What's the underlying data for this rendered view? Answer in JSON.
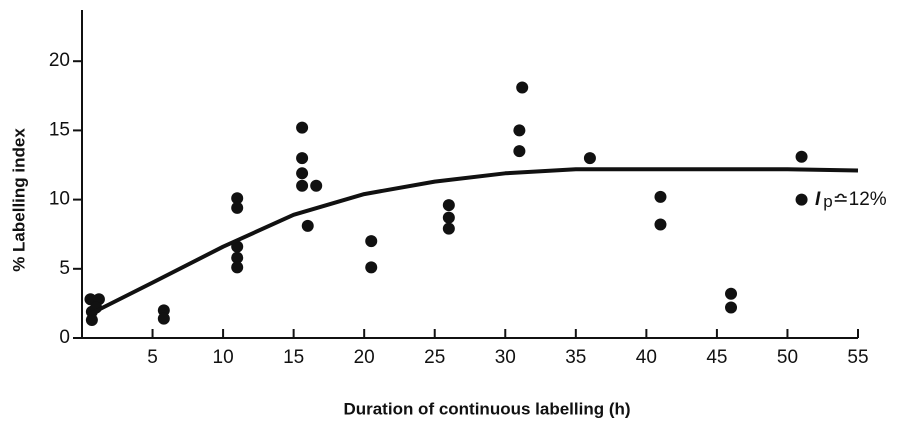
{
  "chart_data": {
    "type": "scatter",
    "xlabel": "Duration of continuous labelling (h)",
    "ylabel": "% Labelling index",
    "xlim": [
      0,
      55
    ],
    "ylim": [
      0,
      23.7
    ],
    "xticks": [
      5,
      10,
      15,
      20,
      25,
      30,
      35,
      40,
      45,
      50,
      55
    ],
    "yticks": [
      0,
      5,
      10,
      15,
      20
    ],
    "annotation": {
      "symbol": "I",
      "subscript": "p",
      "text": "≏12%"
    },
    "series": [
      {
        "type": "scatter",
        "color": "#111111",
        "x": [
          0.6,
          0.7,
          0.7,
          1.2,
          1.0,
          5.8,
          5.8,
          11,
          11,
          11,
          11,
          11,
          15.6,
          15.6,
          15.6,
          15.6,
          16.6,
          16.0,
          20.5,
          20.5,
          26,
          26,
          26,
          31,
          31,
          31.2,
          36,
          41,
          41,
          46,
          46,
          51,
          51
        ],
        "values": [
          2.8,
          1.9,
          1.3,
          2.8,
          2.2,
          2.0,
          1.4,
          10.1,
          9.4,
          6.6,
          5.8,
          5.1,
          15.2,
          13.0,
          11.9,
          11.0,
          11.0,
          8.1,
          7.0,
          5.1,
          9.6,
          8.7,
          7.9,
          13.5,
          15.0,
          18.1,
          13.0,
          10.2,
          8.2,
          3.2,
          2.2,
          13.1,
          10.0
        ]
      },
      {
        "type": "line",
        "color": "#111111",
        "x": [
          0.5,
          5,
          10,
          15,
          20,
          25,
          30,
          35,
          40,
          45,
          50,
          55
        ],
        "values": [
          1.7,
          4.0,
          6.6,
          8.9,
          10.4,
          11.3,
          11.9,
          12.2,
          12.2,
          12.2,
          12.2,
          12.1
        ]
      }
    ]
  }
}
